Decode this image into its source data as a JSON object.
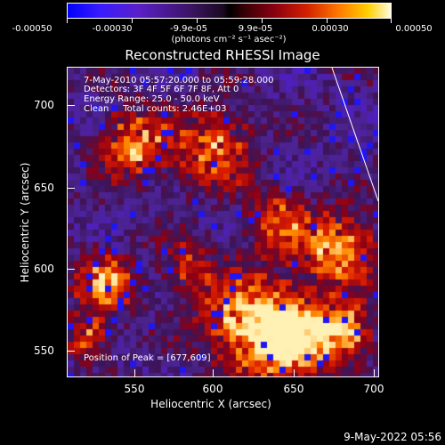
{
  "colorbar": {
    "tick_labels": [
      "-0.00050",
      "-0.00030",
      "-9.9e-05",
      "9.9e-05",
      "0.00030",
      "0.00050"
    ],
    "units": "(photons cm⁻² s⁻¹ asec⁻²)",
    "colors": {
      "low": "#0000ff",
      "mid": "#000000",
      "high": "#fffbe0"
    }
  },
  "title": "Reconstructed RHESSI Image",
  "annotations": {
    "time": "7-May-2010 05:57:20.000 to 05:59:28.000",
    "detectors": "Detectors: 3F 4F 5F 6F 7F 8F, Att 0",
    "energy": "Energy Range: 25.0 - 50.0 keV",
    "clean": "Clean     Total counts: 2.46E+03",
    "peak": "Position of Peak = [677,609]"
  },
  "axes": {
    "x_label": "Heliocentric X (arcsec)",
    "y_label": "Heliocentric Y (arcsec)",
    "x_ticks": [
      "550",
      "600",
      "650",
      "700"
    ],
    "y_ticks": [
      "700",
      "650",
      "600",
      "550"
    ],
    "x_range": [
      510,
      700
    ],
    "y_range": [
      527,
      722
    ]
  },
  "footer": "9-May-2022 05:56"
}
